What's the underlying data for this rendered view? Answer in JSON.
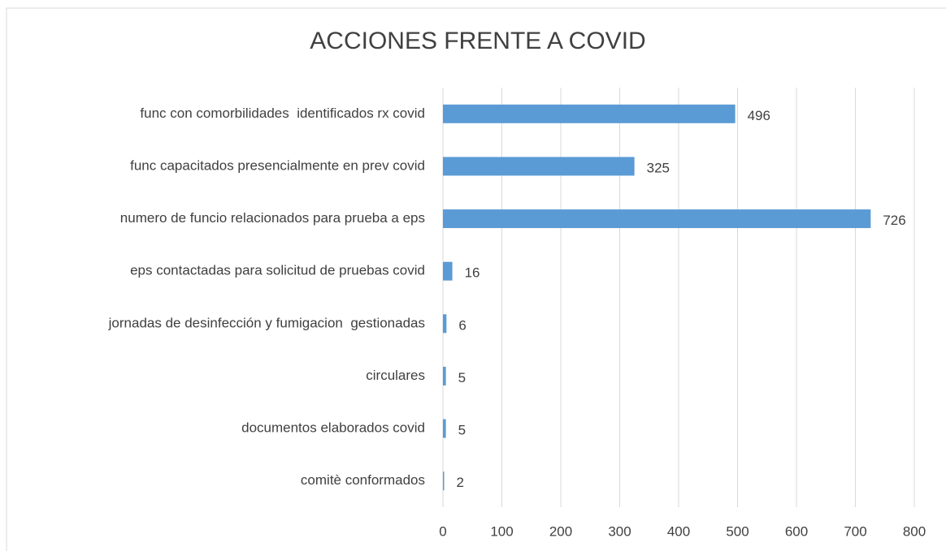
{
  "chart_data": {
    "type": "bar",
    "orientation": "horizontal",
    "title": "ACCIONES FRENTE A COVID",
    "categories": [
      "func con comorbilidades  identificados rx covid",
      "func capacitados presencialmente en prev covid",
      "numero de funcio relacionados para prueba a eps",
      "eps contactadas para solicitud de pruebas covid",
      "jornadas de desinfección y fumigacion  gestionadas",
      "circulares",
      "documentos elaborados covid",
      "comitè conformados"
    ],
    "values": [
      496,
      325,
      726,
      16,
      6,
      5,
      5,
      2
    ],
    "color": "#5b9bd5",
    "xlim": [
      0,
      800
    ],
    "xticks": [
      0,
      100,
      200,
      300,
      400,
      500,
      600,
      700,
      800
    ],
    "grid": true,
    "data_labels": true
  }
}
